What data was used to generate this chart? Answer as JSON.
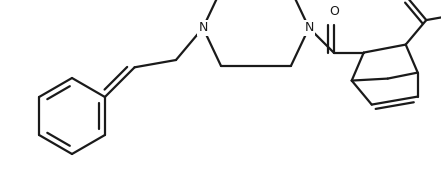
{
  "bg_color": "#ffffff",
  "line_color": "#1a1a1a",
  "line_width": 1.6,
  "figsize": [
    4.41,
    1.88
  ],
  "dpi": 100,
  "xlim": [
    0,
    4.41
  ],
  "ylim": [
    0,
    1.88
  ]
}
